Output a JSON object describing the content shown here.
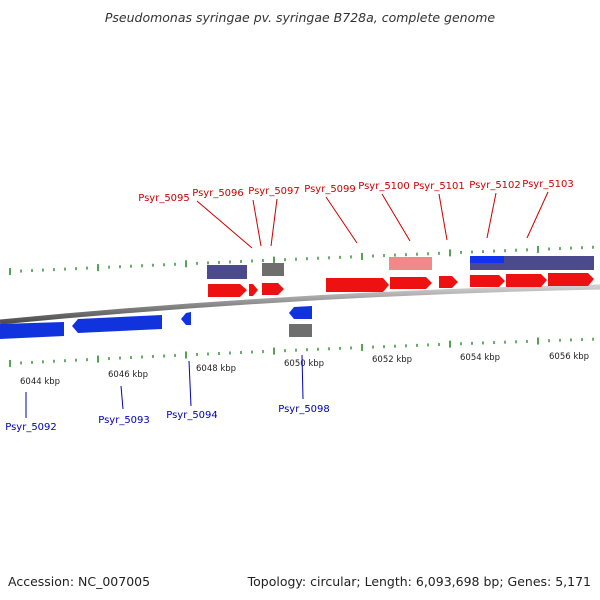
{
  "title": "Pseudomonas syringae pv. syringae B728a, complete genome",
  "footer": {
    "accession": "Accession: NC_007005",
    "summary": "Topology: circular; Length: 6,093,698 bp; Genes: 5,171"
  },
  "colors": {
    "forward_gene": "#ee1111",
    "reverse_gene": "#1133dd",
    "forward_label": "#cc0000",
    "reverse_label": "#0000bb",
    "tick": "#2a8a2a",
    "backbone": "#8a8a8a",
    "feature_purple": "#4b4a8c",
    "feature_gray": "#6e6e6e",
    "feature_pink": "#f08a8a",
    "feature_blue": "#1133ee"
  },
  "scale_labels": [
    "6044 kbp",
    "6046 kbp",
    "6048 kbp",
    "6050 kbp",
    "6052 kbp",
    "6054 kbp",
    "6056 kbp"
  ],
  "forward_gene_labels": [
    "Psyr_5095",
    "Psyr_5096",
    "Psyr_5097",
    "Psyr_5099",
    "Psyr_5100",
    "Psyr_5101",
    "Psyr_5102",
    "Psyr_5103"
  ],
  "reverse_gene_labels": [
    "Psyr_5092",
    "Psyr_5093",
    "Psyr_5094",
    "Psyr_5098"
  ]
}
